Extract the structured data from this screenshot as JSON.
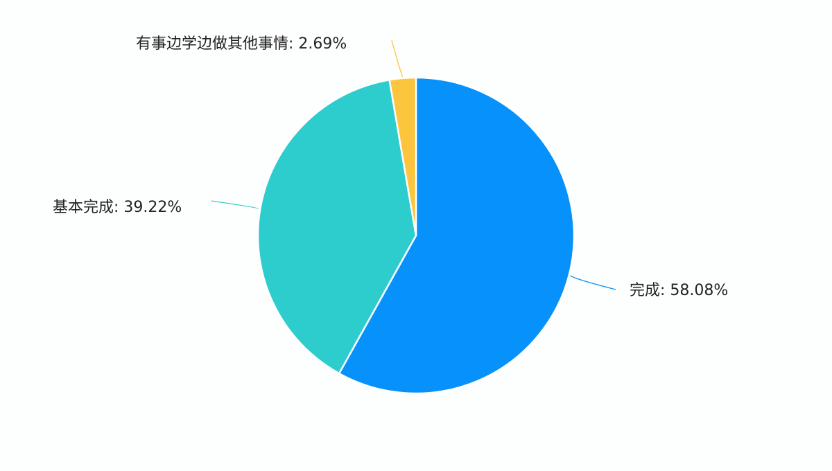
{
  "chart_data": {
    "type": "pie",
    "title": "",
    "series": [
      {
        "slices": [
          {
            "name": "完成",
            "value": 58.08,
            "label": "完成: 58.08%",
            "color": "#0791fa"
          },
          {
            "name": "基本完成",
            "value": 39.22,
            "label": "基本完成: 39.22%",
            "color": "#2ecdcd"
          },
          {
            "name": "有事边学边做其他事情",
            "value": 2.69,
            "label": "有事边学边做其他事情: 2.69%",
            "color": "#fdc43d"
          }
        ]
      }
    ],
    "start_angle_deg": 0,
    "direction": "clockwise",
    "legend": "none",
    "slice_border_color": "#ffffff",
    "leader_line_colors": "slice"
  }
}
